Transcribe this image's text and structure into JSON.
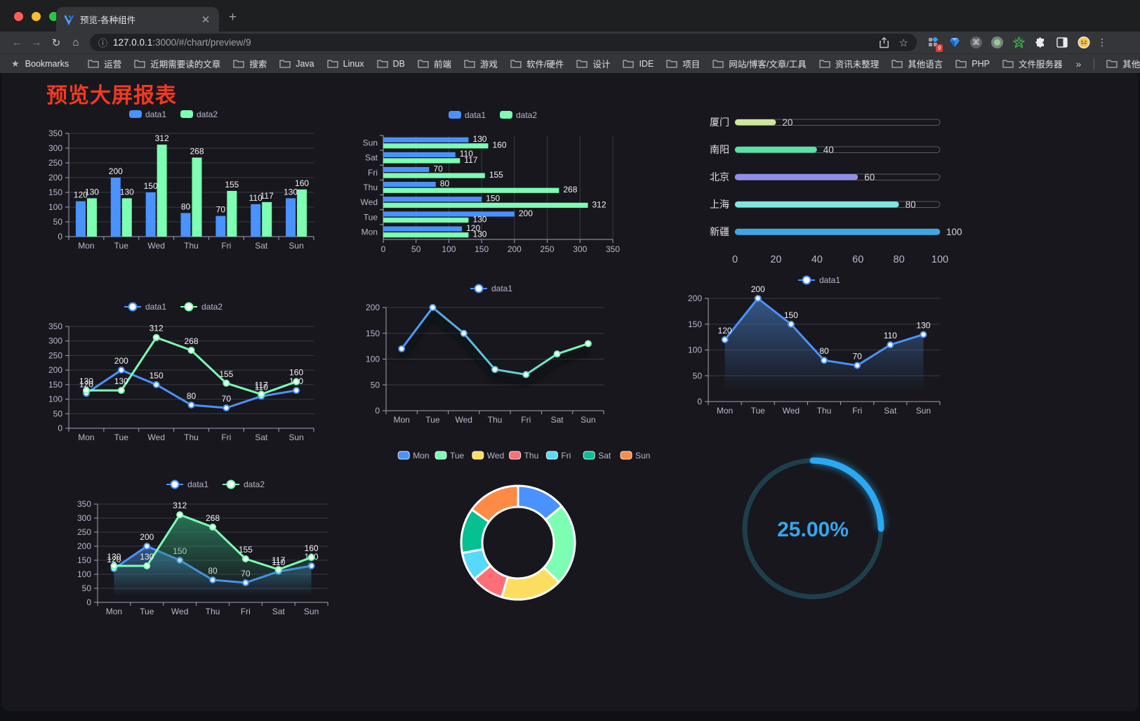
{
  "browser": {
    "tab": {
      "title": "预览-各种组件"
    },
    "address": {
      "url_host": "127.0.0.1",
      "url_rest": ":3000/#/chart/preview/9"
    },
    "extensions_badge": "9",
    "bookmarks_bar": {
      "label": "Bookmarks",
      "folders": [
        "运营",
        "近期需要读的文章",
        "搜索",
        "Java",
        "Linux",
        "DB",
        "前端",
        "游戏",
        "软件/硬件",
        "设计",
        "IDE",
        "项目",
        "网站/博客/文章/工具",
        "资讯未整理",
        "其他语言",
        "PHP",
        "文件服务器"
      ],
      "overflow": "»",
      "other_bookmarks": "其他书签"
    }
  },
  "page": {
    "title": "预览大屏报表"
  },
  "chart_data": [
    {
      "id": "bar-vertical",
      "type": "bar",
      "categories": [
        "Mon",
        "Tue",
        "Wed",
        "Thu",
        "Fri",
        "Sat",
        "Sun"
      ],
      "series": [
        {
          "name": "data1",
          "color": "#4992ff",
          "values": [
            120,
            200,
            150,
            80,
            70,
            110,
            130
          ]
        },
        {
          "name": "data2",
          "color": "#7cffb2",
          "values": [
            130,
            130,
            312,
            268,
            155,
            117,
            160
          ]
        }
      ],
      "ylim": [
        0,
        350
      ],
      "ytick_step": 50,
      "legend_position": "top",
      "value_labels": true,
      "grid": true
    },
    {
      "id": "bar-horizontal",
      "type": "bar",
      "orientation": "horizontal",
      "categories": [
        "Mon",
        "Tue",
        "Wed",
        "Thu",
        "Fri",
        "Sat",
        "Sun"
      ],
      "category_order": "bottom-to-top",
      "series": [
        {
          "name": "data1",
          "color": "#4992ff",
          "values": [
            120,
            200,
            150,
            80,
            70,
            110,
            130
          ]
        },
        {
          "name": "data2",
          "color": "#7cffb2",
          "values": [
            130,
            130,
            312,
            268,
            155,
            117,
            160
          ]
        }
      ],
      "xlim": [
        0,
        350
      ],
      "xtick_step": 50,
      "legend_position": "top",
      "value_labels": true,
      "grid": true
    },
    {
      "id": "progress-bars",
      "type": "bar",
      "orientation": "horizontal",
      "style": "progress",
      "items": [
        {
          "label": "厦门",
          "value": 20,
          "color": "#cde79b"
        },
        {
          "label": "南阳",
          "value": 40,
          "color": "#55e3a6"
        },
        {
          "label": "北京",
          "value": 60,
          "color": "#8f8fea"
        },
        {
          "label": "上海",
          "value": 80,
          "color": "#7fe7e2"
        },
        {
          "label": "新疆",
          "value": 100,
          "color": "#39a8e8"
        }
      ],
      "xlim": [
        0,
        100
      ],
      "xticks": [
        0,
        20,
        40,
        60,
        80,
        100
      ]
    },
    {
      "id": "line-two",
      "type": "line",
      "categories": [
        "Mon",
        "Tue",
        "Wed",
        "Thu",
        "Fri",
        "Sat",
        "Sun"
      ],
      "series": [
        {
          "name": "data1",
          "color": "#4992ff",
          "values": [
            120,
            200,
            150,
            80,
            70,
            110,
            130
          ]
        },
        {
          "name": "data2",
          "color": "#7cffb2",
          "values": [
            130,
            130,
            312,
            268,
            155,
            117,
            160
          ]
        }
      ],
      "ylim": [
        0,
        350
      ],
      "ytick_step": 50,
      "legend_position": "top",
      "value_labels": true,
      "grid": true
    },
    {
      "id": "line-gradient",
      "type": "line",
      "categories": [
        "Mon",
        "Tue",
        "Wed",
        "Thu",
        "Fri",
        "Sat",
        "Sun"
      ],
      "series": [
        {
          "name": "data1",
          "line_gradient": [
            "#4992ff",
            "#7cffb2"
          ],
          "values": [
            120,
            200,
            150,
            80,
            70,
            110,
            130
          ]
        }
      ],
      "ylim": [
        0,
        200
      ],
      "ytick_step": 50,
      "legend_position": "top",
      "value_labels": false,
      "shadow": true,
      "grid": true
    },
    {
      "id": "area-single",
      "type": "area",
      "categories": [
        "Mon",
        "Tue",
        "Wed",
        "Thu",
        "Fri",
        "Sat",
        "Sun"
      ],
      "series": [
        {
          "name": "data1",
          "color": "#4992ff",
          "area_from": "#3f6ca8",
          "values": [
            120,
            200,
            150,
            80,
            70,
            110,
            130
          ]
        }
      ],
      "ylim": [
        0,
        200
      ],
      "ytick_step": 50,
      "legend_position": "top",
      "value_labels": true,
      "grid": true
    },
    {
      "id": "area-two",
      "type": "area",
      "categories": [
        "Mon",
        "Tue",
        "Wed",
        "Thu",
        "Fri",
        "Sat",
        "Sun"
      ],
      "series": [
        {
          "name": "data1",
          "color": "#4992ff",
          "area_from": "#3a6eb0",
          "values": [
            120,
            200,
            150,
            80,
            70,
            110,
            130
          ]
        },
        {
          "name": "data2",
          "color": "#7cffb2",
          "area_from": "#2f8f68",
          "values": [
            130,
            130,
            312,
            268,
            155,
            117,
            160
          ]
        }
      ],
      "ylim": [
        0,
        350
      ],
      "ytick_step": 50,
      "legend_position": "top",
      "value_labels": true,
      "grid": true
    },
    {
      "id": "donut",
      "type": "pie",
      "inner_radius_ratio": 0.63,
      "categories": [
        "Mon",
        "Tue",
        "Wed",
        "Thu",
        "Fri",
        "Sat",
        "Sun"
      ],
      "values": [
        120,
        200,
        150,
        80,
        70,
        110,
        130
      ],
      "colors": [
        "#4992ff",
        "#7cffb2",
        "#fddd60",
        "#ff6e76",
        "#58d9f9",
        "#05c091",
        "#ff8a45"
      ],
      "legend_position": "top"
    },
    {
      "id": "gauge",
      "type": "gauge",
      "percent": 25,
      "label": "25.00%",
      "color": "#2aa9f2",
      "track_color": "#1f3e4b"
    }
  ]
}
